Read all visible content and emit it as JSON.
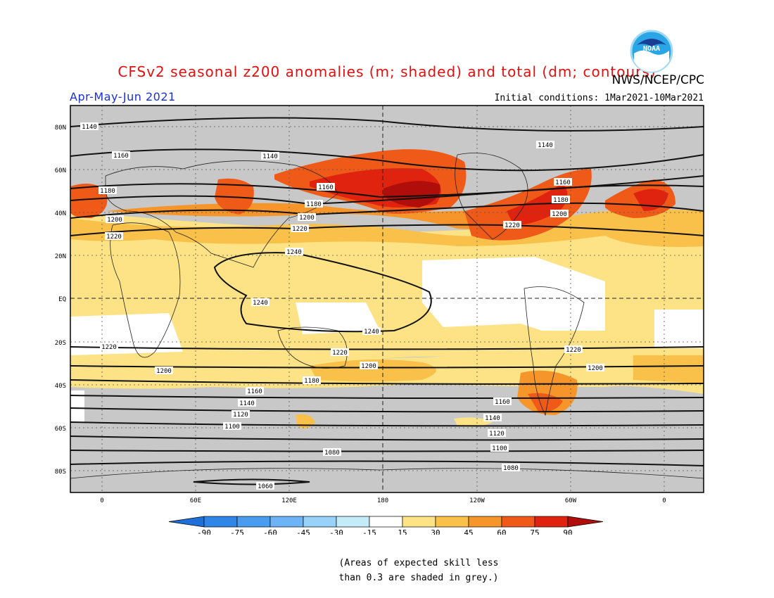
{
  "title": "CFSv2 seasonal z200 anomalies (m; shaded) and total (dm; contours)",
  "agency": "NWS/NCEP/CPC",
  "logo_text": "NOAA",
  "season": "Apr-May-Jun 2021",
  "initial_conditions": "Initial conditions: 1Mar2021-10Mar2021",
  "map": {
    "lat_labels": [
      "80N",
      "60N",
      "40N",
      "20N",
      "EQ",
      "20S",
      "40S",
      "60S",
      "80S"
    ],
    "lon_labels": [
      "0",
      "60E",
      "120E",
      "180",
      "120W",
      "60W",
      "0"
    ],
    "contour_labels": [
      "1140",
      "1160",
      "1140",
      "1140",
      "1160",
      "1160",
      "1180",
      "1180",
      "1180",
      "1200",
      "1200",
      "1200",
      "1220",
      "1220",
      "1220",
      "1240",
      "1240",
      "1240",
      "1220",
      "1220",
      "1220",
      "1200",
      "1200",
      "1200",
      "1180",
      "1160",
      "1160",
      "1140",
      "1140",
      "1120",
      "1120",
      "1100",
      "1100",
      "1080",
      "1080",
      "1060"
    ]
  },
  "colorbar": {
    "labels": [
      "-90",
      "-75",
      "-60",
      "-45",
      "-30",
      "-15",
      "15",
      "30",
      "45",
      "60",
      "75",
      "90"
    ],
    "colors": [
      "#1e6fd8",
      "#2f86e6",
      "#4a9cef",
      "#6cb4f5",
      "#98d2f8",
      "#c4ecf8",
      "#ffffff",
      "#fde386",
      "#f9c04a",
      "#f6962a",
      "#f05a18",
      "#e0230f",
      "#b00e0a"
    ]
  },
  "note_lines": [
    "(Areas of expected skill less",
    "than 0.3 are shaded in grey.)"
  ],
  "grey_color": "#c8c8c8"
}
